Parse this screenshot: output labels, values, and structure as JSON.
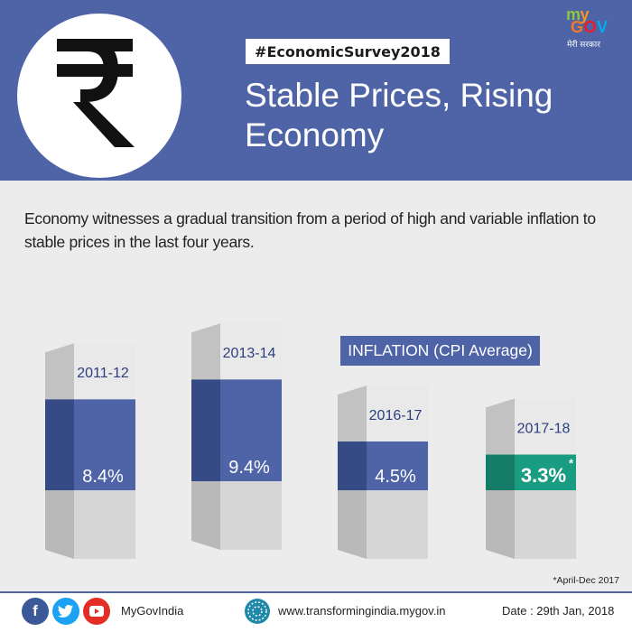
{
  "header": {
    "hashtag": "#EconomicSurvey2018",
    "title": "Stable Prices, Rising Economy",
    "logo": {
      "my": "my",
      "gov": "GOV",
      "tagline": "मेरी सरकार"
    }
  },
  "description": "Economy witnesses a gradual transition from a period of high and variable inflation to stable prices in the last four years.",
  "chart_data": {
    "type": "bar",
    "title": "INFLATION (CPI Average)",
    "categories": [
      "2011-12",
      "2013-14",
      "2016-17",
      "2017-18"
    ],
    "values": [
      8.4,
      9.4,
      4.5,
      3.3
    ],
    "value_labels": [
      "8.4%",
      "9.4%",
      "4.5%",
      "3.3%"
    ],
    "value_marks": [
      "",
      "",
      "",
      "*"
    ],
    "highlight_index": 3,
    "colors": {
      "bar": "#4e64a7",
      "bar_side": "#364a86",
      "highlight": "#1a9c82",
      "highlight_side": "#157c68"
    },
    "note": "*April-Dec 2017"
  },
  "footer": {
    "social_icons": [
      "facebook-icon",
      "twitter-icon",
      "youtube-icon"
    ],
    "handle": "MyGovIndia",
    "website": "www.transformingindia.mygov.in",
    "date": "Date : 29th Jan, 2018"
  }
}
